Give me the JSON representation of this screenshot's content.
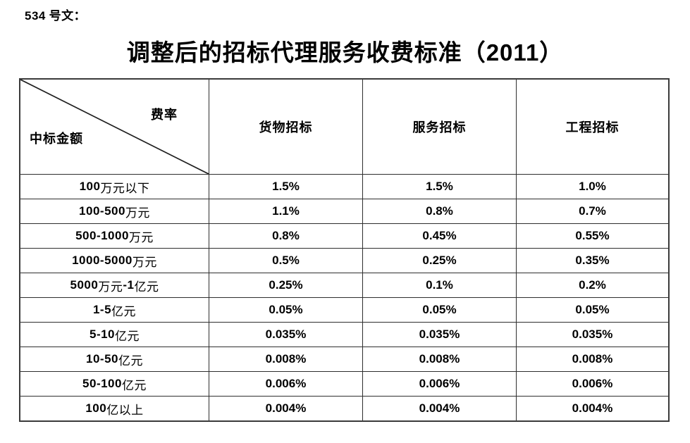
{
  "doc_number": "534 号文：",
  "title": "调整后的招标代理服务收费标准（2011）",
  "table": {
    "corner": {
      "top_right_label": "费率",
      "bottom_left_label": "中标金额"
    },
    "columns": [
      "货物招标",
      "服务招标",
      "工程招标"
    ],
    "rows": [
      {
        "amount": "100 万元以下",
        "rates": [
          "1.5%",
          "1.5%",
          "1.0%"
        ]
      },
      {
        "amount": "100-500 万元",
        "rates": [
          "1.1%",
          "0.8%",
          "0.7%"
        ]
      },
      {
        "amount": "500-1000 万元",
        "rates": [
          "0.8%",
          "0.45%",
          "0.55%"
        ]
      },
      {
        "amount": "1000-5000 万元",
        "rates": [
          "0.5%",
          "0.25%",
          "0.35%"
        ]
      },
      {
        "amount": "5000 万元-1 亿元",
        "rates": [
          "0.25%",
          "0.1%",
          "0.2%"
        ]
      },
      {
        "amount": "1-5 亿元",
        "rates": [
          "0.05%",
          "0.05%",
          "0.05%"
        ]
      },
      {
        "amount": "5-10 亿元",
        "rates": [
          "0.035%",
          "0.035%",
          "0.035%"
        ]
      },
      {
        "amount": "10-50 亿元",
        "rates": [
          "0.008%",
          "0.008%",
          "0.008%"
        ]
      },
      {
        "amount": "50-100 亿元",
        "rates": [
          "0.006%",
          "0.006%",
          "0.006%"
        ]
      },
      {
        "amount": "100 亿以上",
        "rates": [
          "0.004%",
          "0.004%",
          "0.004%"
        ]
      }
    ]
  },
  "colors": {
    "text": "#000000",
    "border": "#2e2e2e",
    "background": "#ffffff"
  }
}
